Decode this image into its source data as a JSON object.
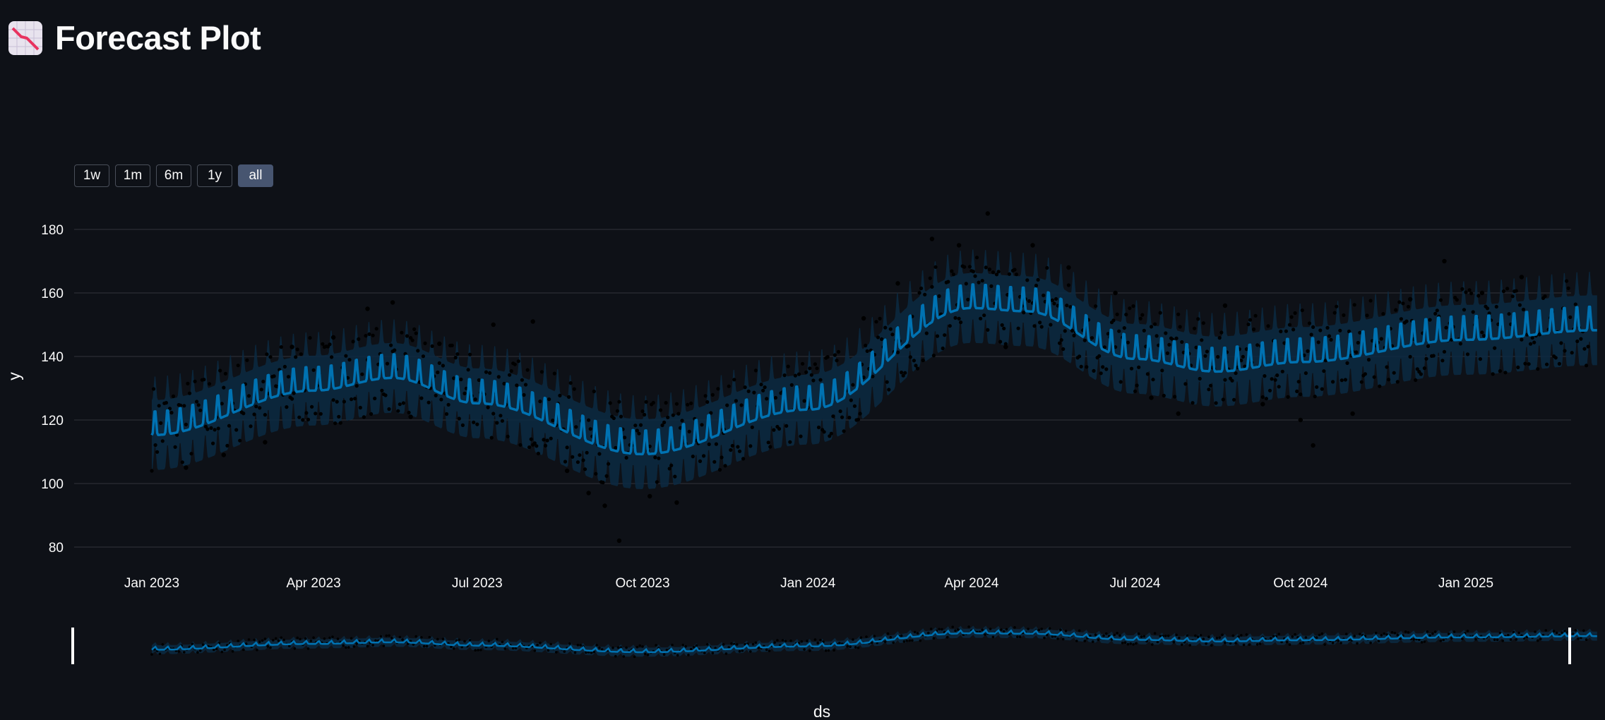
{
  "header": {
    "icon": "chart-decreasing-icon",
    "title": "Forecast Plot"
  },
  "range_selector": {
    "buttons": [
      "1w",
      "1m",
      "6m",
      "1y",
      "all"
    ],
    "active": "all"
  },
  "colors": {
    "background": "#0e1117",
    "forecast_line": "#0072b2",
    "uncertainty_band": "#0a2a42",
    "actual_points": "#000000",
    "gridline": "#31333b",
    "active_button": "#475570"
  },
  "chart_data": {
    "type": "line",
    "title": "",
    "xlabel": "ds",
    "ylabel": "y",
    "ylim": [
      75,
      188
    ],
    "xlim": [
      "2023-01-01",
      "2025-03-15"
    ],
    "yticks": [
      80,
      100,
      120,
      140,
      160,
      180
    ],
    "xticks": [
      {
        "date": "2023-01-01",
        "label": "Jan 2023"
      },
      {
        "date": "2023-04-01",
        "label": "Apr 2023"
      },
      {
        "date": "2023-07-01",
        "label": "Jul 2023"
      },
      {
        "date": "2023-10-01",
        "label": "Oct 2023"
      },
      {
        "date": "2024-01-01",
        "label": "Jan 2024"
      },
      {
        "date": "2024-04-01",
        "label": "Apr 2024"
      },
      {
        "date": "2024-07-01",
        "label": "Jul 2024"
      },
      {
        "date": "2024-10-01",
        "label": "Oct 2024"
      },
      {
        "date": "2025-01-01",
        "label": "Jan 2025"
      }
    ],
    "grid": true,
    "legend": "none",
    "series": [
      {
        "kind": "forecast",
        "trend_knots": [
          {
            "x": "2023-01-01",
            "y": 118
          },
          {
            "x": "2023-04-01",
            "y": 132
          },
          {
            "x": "2023-05-15",
            "y": 136
          },
          {
            "x": "2023-07-01",
            "y": 128
          },
          {
            "x": "2023-10-01",
            "y": 112
          },
          {
            "x": "2024-01-01",
            "y": 126
          },
          {
            "x": "2024-04-01",
            "y": 158
          },
          {
            "x": "2024-05-01",
            "y": 157
          },
          {
            "x": "2024-07-01",
            "y": 142
          },
          {
            "x": "2024-08-15",
            "y": 138
          },
          {
            "x": "2024-10-01",
            "y": 141
          },
          {
            "x": "2025-01-01",
            "y": 148
          },
          {
            "x": "2025-03-15",
            "y": 151
          }
        ],
        "weekly_amplitude": 5,
        "band_halfwidth": 11
      },
      {
        "kind": "actual",
        "points": [
          {
            "x": "2023-01-20",
            "y": 105
          },
          {
            "x": "2023-02-10",
            "y": 109
          },
          {
            "x": "2023-03-05",
            "y": 113
          },
          {
            "x": "2023-03-20",
            "y": 143
          },
          {
            "x": "2023-04-12",
            "y": 146
          },
          {
            "x": "2023-05-01",
            "y": 155
          },
          {
            "x": "2023-05-15",
            "y": 157
          },
          {
            "x": "2023-05-25",
            "y": 121
          },
          {
            "x": "2023-06-10",
            "y": 144
          },
          {
            "x": "2023-07-10",
            "y": 150
          },
          {
            "x": "2023-08-01",
            "y": 151
          },
          {
            "x": "2023-08-20",
            "y": 104
          },
          {
            "x": "2023-09-01",
            "y": 97
          },
          {
            "x": "2023-09-10",
            "y": 93
          },
          {
            "x": "2023-09-18",
            "y": 82
          },
          {
            "x": "2023-10-05",
            "y": 96
          },
          {
            "x": "2023-10-20",
            "y": 94
          },
          {
            "x": "2023-11-15",
            "y": 117
          },
          {
            "x": "2024-02-01",
            "y": 152
          },
          {
            "x": "2024-02-20",
            "y": 163
          },
          {
            "x": "2024-03-10",
            "y": 177
          },
          {
            "x": "2024-03-25",
            "y": 175
          },
          {
            "x": "2024-04-10",
            "y": 185
          },
          {
            "x": "2024-04-20",
            "y": 143
          },
          {
            "x": "2024-05-05",
            "y": 175
          },
          {
            "x": "2024-05-25",
            "y": 168
          },
          {
            "x": "2024-06-20",
            "y": 160
          },
          {
            "x": "2024-07-10",
            "y": 127
          },
          {
            "x": "2024-07-25",
            "y": 122
          },
          {
            "x": "2024-08-20",
            "y": 156
          },
          {
            "x": "2024-09-10",
            "y": 125
          },
          {
            "x": "2024-10-01",
            "y": 120
          },
          {
            "x": "2024-10-08",
            "y": 112
          },
          {
            "x": "2024-10-30",
            "y": 122
          },
          {
            "x": "2024-12-01",
            "y": 158
          },
          {
            "x": "2024-12-20",
            "y": 170
          },
          {
            "x": "2025-01-10",
            "y": 160
          },
          {
            "x": "2025-02-01",
            "y": 165
          }
        ]
      }
    ]
  },
  "axis_title_x": "ds",
  "axis_title_y": "y"
}
